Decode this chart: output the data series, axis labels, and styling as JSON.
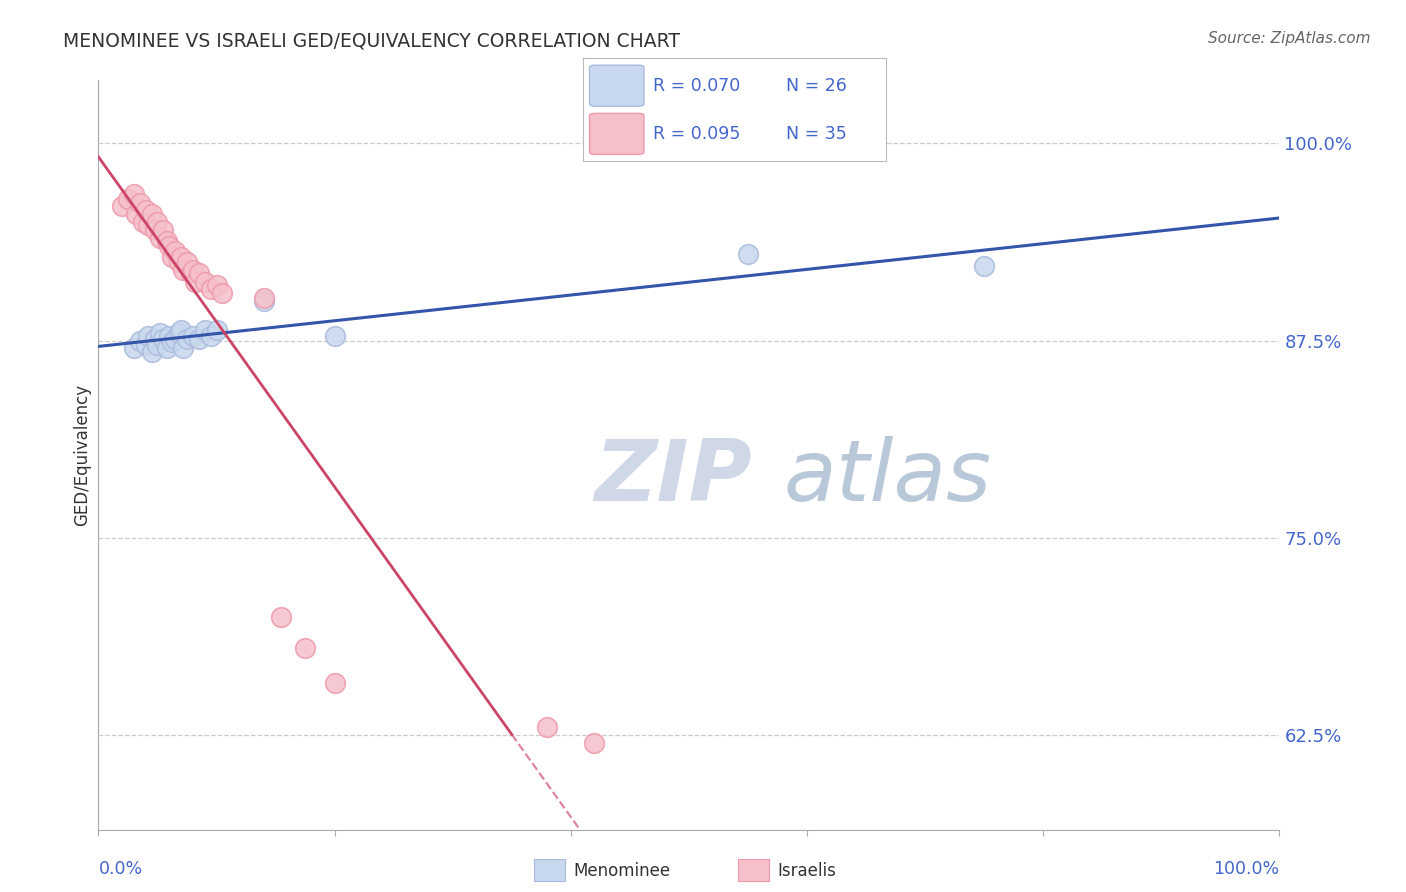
{
  "title": "MENOMINEE VS ISRAELI GED/EQUIVALENCY CORRELATION CHART",
  "source": "Source: ZipAtlas.com",
  "ylabel": "GED/Equivalency",
  "ytick_labels": [
    "62.5%",
    "75.0%",
    "87.5%",
    "100.0%"
  ],
  "ytick_values": [
    0.625,
    0.75,
    0.875,
    1.0
  ],
  "xlim": [
    0.0,
    1.0
  ],
  "ylim": [
    0.565,
    1.04
  ],
  "legend_blue_r": "R = 0.070",
  "legend_blue_n": "N = 26",
  "legend_pink_r": "R = 0.095",
  "legend_pink_n": "N = 35",
  "blue_color": "#aabbdd",
  "blue_face": "#c8d8ee",
  "pink_color": "#ee99aa",
  "pink_face": "#f5c0ca",
  "trendline_blue_color": "#3355aa",
  "trendline_pink_color": "#cc4466",
  "grid_color": "#cccccc",
  "label_color": "#4466cc",
  "background_color": "#ffffff",
  "menominee_x": [
    0.03,
    0.035,
    0.04,
    0.042,
    0.045,
    0.048,
    0.05,
    0.052,
    0.055,
    0.058,
    0.06,
    0.062,
    0.065,
    0.068,
    0.07,
    0.072,
    0.075,
    0.08,
    0.085,
    0.09,
    0.095,
    0.1,
    0.14,
    0.2,
    0.55,
    0.75
  ],
  "menominee_y": [
    0.87,
    0.875,
    0.872,
    0.878,
    0.868,
    0.876,
    0.872,
    0.88,
    0.876,
    0.87,
    0.878,
    0.874,
    0.876,
    0.88,
    0.882,
    0.87,
    0.876,
    0.878,
    0.876,
    0.882,
    0.878,
    0.882,
    0.9,
    0.878,
    0.93,
    0.922
  ],
  "israeli_x": [
    0.02,
    0.025,
    0.03,
    0.032,
    0.035,
    0.038,
    0.04,
    0.042,
    0.045,
    0.048,
    0.05,
    0.052,
    0.055,
    0.058,
    0.06,
    0.062,
    0.065,
    0.068,
    0.07,
    0.072,
    0.075,
    0.078,
    0.08,
    0.082,
    0.085,
    0.09,
    0.095,
    0.1,
    0.105,
    0.14,
    0.155,
    0.175,
    0.2,
    0.38,
    0.42
  ],
  "israeli_y": [
    0.96,
    0.965,
    0.968,
    0.955,
    0.962,
    0.95,
    0.958,
    0.948,
    0.955,
    0.945,
    0.95,
    0.94,
    0.945,
    0.938,
    0.935,
    0.928,
    0.932,
    0.925,
    0.928,
    0.92,
    0.925,
    0.918,
    0.92,
    0.912,
    0.918,
    0.912,
    0.908,
    0.91,
    0.905,
    0.902,
    0.7,
    0.68,
    0.658,
    0.63,
    0.62
  ],
  "watermark_zip": "ZIP",
  "watermark_atlas": "atlas",
  "watermark_color": "#dde5f0"
}
